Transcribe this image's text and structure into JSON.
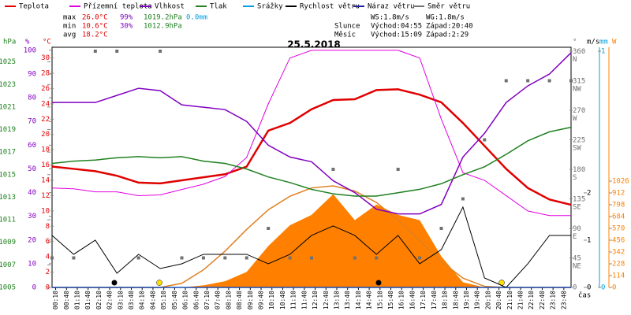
{
  "chart_data": {
    "type": "line",
    "title": "25.5.2018",
    "stats": [
      {
        "label": "max",
        "temp": "26.0°C",
        "hum": "99%",
        "press": "1019.2hPa",
        "rain": "0.0mm"
      },
      {
        "label": "min",
        "temp": "10.6°C",
        "hum": "30%",
        "press": "1012.9hPa"
      },
      {
        "label": "avg",
        "temp": "18.2°C"
      }
    ],
    "wind_stats": [
      "WS:1.8m/s",
      "WG:1.8m/s"
    ],
    "sun": [
      "Slunce",
      "Východ:04:55",
      "Západ:20:40"
    ],
    "moon": [
      "Měsíc",
      "Východ:15:09",
      "Západ:2:29"
    ],
    "x_label": "čas",
    "x": [
      0,
      1,
      2,
      3,
      4,
      5,
      6,
      7,
      8,
      9,
      10,
      11,
      12,
      13,
      14,
      15,
      16,
      17,
      18,
      19,
      20,
      21,
      22,
      23,
      24
    ],
    "xlim": [
      0,
      24
    ],
    "xticks": [
      {
        "value": 0.1667,
        "label": "00:10"
      },
      {
        "value": 0.6667,
        "label": "00:40"
      },
      {
        "value": 1.1667,
        "label": "01:10"
      },
      {
        "value": 1.6667,
        "label": "01:40"
      },
      {
        "value": 2.1667,
        "label": "02:10"
      },
      {
        "value": 2.6667,
        "label": "02:40"
      },
      {
        "value": 3.1667,
        "label": "03:10"
      },
      {
        "value": 3.6667,
        "label": "03:40"
      },
      {
        "value": 4.1667,
        "label": "04:10"
      },
      {
        "value": 4.6667,
        "label": "04:40"
      },
      {
        "value": 5.1667,
        "label": "05:10"
      },
      {
        "value": 5.6667,
        "label": "05:40"
      },
      {
        "value": 6.1667,
        "label": "06:10"
      },
      {
        "value": 6.6667,
        "label": "06:40"
      },
      {
        "value": 7.1667,
        "label": "07:10"
      },
      {
        "value": 7.6667,
        "label": "07:40"
      },
      {
        "value": 8.1667,
        "label": "08:10"
      },
      {
        "value": 8.6667,
        "label": "08:40"
      },
      {
        "value": 9.1667,
        "label": "09:10"
      },
      {
        "value": 9.6667,
        "label": "09:40"
      },
      {
        "value": 10.1667,
        "label": "10:10"
      },
      {
        "value": 10.6667,
        "label": "10:40"
      },
      {
        "value": 11.1667,
        "label": "11:10"
      },
      {
        "value": 11.6667,
        "label": "11:40"
      },
      {
        "value": 12.1667,
        "label": "12:10"
      },
      {
        "value": 12.6667,
        "label": "12:40"
      },
      {
        "value": 13.1667,
        "label": "13:10"
      },
      {
        "value": 13.6667,
        "label": "13:40"
      },
      {
        "value": 14.1667,
        "label": "14:10"
      },
      {
        "value": 14.6667,
        "label": "14:40"
      },
      {
        "value": 15.1667,
        "label": "15:10"
      },
      {
        "value": 15.6667,
        "label": "15:40"
      },
      {
        "value": 16.1667,
        "label": "16:10"
      },
      {
        "value": 16.6667,
        "label": "16:40"
      },
      {
        "value": 17.1667,
        "label": "17:10"
      },
      {
        "value": 17.6667,
        "label": "17:40"
      },
      {
        "value": 18.1667,
        "label": "18:10"
      },
      {
        "value": 18.6667,
        "label": "18:40"
      },
      {
        "value": 19.1667,
        "label": "19:10"
      },
      {
        "value": 19.6667,
        "label": "19:40"
      },
      {
        "value": 20.1667,
        "label": "20:10"
      },
      {
        "value": 20.6667,
        "label": "20:40"
      },
      {
        "value": 21.1667,
        "label": "21:10"
      },
      {
        "value": 21.6667,
        "label": "21:40"
      },
      {
        "value": 22.1667,
        "label": "22:10"
      },
      {
        "value": 22.6667,
        "label": "22:40"
      },
      {
        "value": 23.1667,
        "label": "23:10"
      },
      {
        "value": 23.6667,
        "label": "23:40"
      }
    ],
    "y_label": "°C",
    "ylim": [
      0,
      31.4
    ],
    "yticks": [
      0,
      2,
      4,
      6,
      8,
      10,
      12,
      14,
      16,
      18,
      20,
      22,
      24,
      26,
      28,
      30
    ],
    "y2_label": "%",
    "y2lim": [
      0,
      101.3
    ],
    "y2ticks": [
      0,
      10,
      20,
      30,
      40,
      50,
      60,
      70,
      80,
      90,
      100
    ],
    "y3_label": "hPa",
    "y3lim": [
      1005,
      1026.3
    ],
    "y3ticks": [
      1005,
      1007,
      1009,
      1011,
      1013,
      1015,
      1017,
      1019,
      1021,
      1023,
      1025
    ],
    "y4_label": "°",
    "y4lim": [
      0,
      366
    ],
    "y4ticks": [
      0,
      {
        "value": 45,
        "label": "45 NE"
      },
      {
        "value": 90,
        "label": "90 E"
      },
      {
        "value": 135,
        "label": "135 SE"
      },
      {
        "value": 180,
        "label": "180 S"
      },
      {
        "value": 225,
        "label": "225 SW"
      },
      {
        "value": 270,
        "label": "270 W"
      },
      {
        "value": 315,
        "label": "315 NW"
      },
      {
        "value": 360,
        "label": "360 N"
      }
    ],
    "y5_label": "m/s",
    "y5lim": [
      0,
      5.08
    ],
    "y5ticks": [
      0,
      1,
      2
    ],
    "y6_label": "mm",
    "y6lim": [
      0,
      1.017
    ],
    "y6ticks": [
      0,
      1
    ],
    "y7_label": "W",
    "y7lim": [
      0,
      2318
    ],
    "y7ticks": [
      0,
      114,
      228,
      342,
      456,
      570,
      684,
      798,
      912,
      1026
    ],
    "series": [
      {
        "name": "Teplota",
        "color": "#e00000",
        "axis": "y",
        "width": 2.5,
        "values": [
          15.8,
          15.5,
          15.2,
          14.6,
          13.7,
          13.6,
          14.0,
          14.4,
          14.8,
          15.8,
          20.5,
          21.5,
          23.3,
          24.5,
          24.6,
          25.8,
          25.9,
          25.2,
          24.2,
          21.5,
          18.5,
          15.5,
          13.0,
          11.5,
          10.8
        ]
      },
      {
        "name": "Přízemní teplota",
        "color": "#e000e0",
        "axis": "y",
        "width": 1,
        "values": [
          13.0,
          12.9,
          12.5,
          12.5,
          12.0,
          12.1,
          12.8,
          13.5,
          14.5,
          17.0,
          24.0,
          30.0,
          31.0,
          31.0,
          31.0,
          31.0,
          31.0,
          30.0,
          22.0,
          15.0,
          14.0,
          12.0,
          10.0,
          9.4,
          9.4
        ]
      },
      {
        "name": "Vlhkost",
        "color": "#8000c0",
        "axis": "y2",
        "width": 1.5,
        "values": [
          78,
          78,
          78,
          81,
          84,
          83,
          77,
          76,
          75,
          70,
          60,
          55,
          53,
          45,
          40,
          33,
          31,
          31,
          35,
          55,
          65,
          78,
          85,
          90,
          99
        ]
      },
      {
        "name": "Tlak",
        "color": "#208020",
        "axis": "y3",
        "width": 1.5,
        "values": [
          1016.0,
          1016.2,
          1016.3,
          1016.5,
          1016.6,
          1016.5,
          1016.6,
          1016.2,
          1016.0,
          1015.5,
          1014.8,
          1014.3,
          1013.7,
          1013.3,
          1013.1,
          1013.1,
          1013.4,
          1013.7,
          1014.2,
          1015.0,
          1015.7,
          1016.8,
          1018.0,
          1018.8,
          1019.2
        ]
      },
      {
        "name": "Srážky",
        "color": "#00a0e0",
        "axis": "y6",
        "width": 1.5,
        "values": [
          0,
          0,
          0,
          0,
          0,
          0,
          0,
          0,
          0,
          0,
          0,
          0,
          0,
          0,
          0,
          0,
          0,
          0,
          0,
          0,
          0,
          0,
          0,
          0,
          0
        ]
      },
      {
        "name": "Rychlost větru",
        "color": "#000000",
        "axis": "y5",
        "width": 1,
        "values": [
          1.1,
          0.7,
          1.0,
          0.3,
          0.7,
          0.4,
          0.5,
          0.7,
          0.7,
          0.7,
          0.5,
          0.7,
          1.1,
          1.3,
          1.1,
          0.7,
          1.1,
          0.5,
          0.8,
          1.7,
          0.2,
          0.0,
          0.5,
          1.1,
          1.1
        ]
      },
      {
        "name": "Náraz větru",
        "color": "#2020a0",
        "axis": "y5",
        "width": 1,
        "values": [
          0,
          0,
          0,
          0,
          0,
          0,
          0,
          0,
          0,
          0,
          0,
          0,
          0,
          0,
          0,
          0,
          0,
          0,
          0,
          0,
          0,
          0,
          0,
          0,
          0
        ]
      },
      {
        "name": "Směr větru",
        "color": "#707070",
        "axis": "y4",
        "marker": "square",
        "values": [
          45,
          45,
          360,
          360,
          45,
          360,
          45,
          45,
          45,
          45,
          90,
          45,
          45,
          180,
          45,
          45,
          180,
          45,
          90,
          135,
          225,
          315,
          315,
          315,
          315
        ]
      }
    ],
    "radiation": {
      "color": "#ff8000",
      "axis": "y7",
      "values": [
        0,
        0,
        0,
        0,
        0,
        0,
        0,
        20,
        60,
        150,
        400,
        600,
        700,
        900,
        650,
        800,
        700,
        650,
        300,
        50,
        0,
        0,
        0,
        0,
        0
      ]
    },
    "theoretical_radiation": {
      "color": "#e08020",
      "axis": "y7",
      "values": [
        0,
        0,
        0,
        0,
        0,
        0,
        40,
        170,
        350,
        560,
        750,
        880,
        960,
        980,
        930,
        820,
        650,
        450,
        250,
        90,
        10,
        0,
        0,
        0,
        0
      ]
    }
  }
}
